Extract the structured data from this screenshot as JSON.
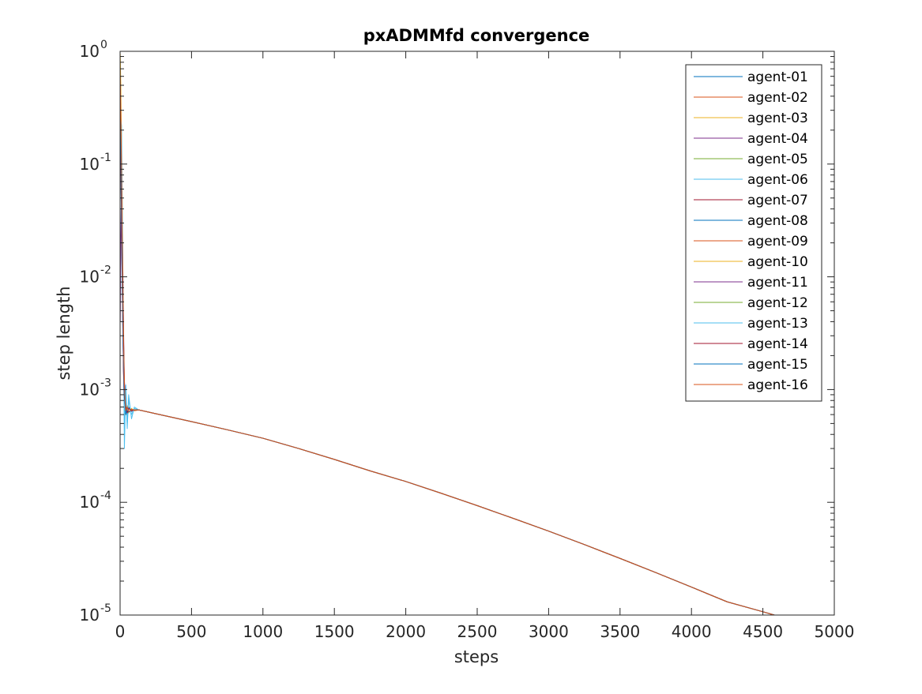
{
  "chart_data": {
    "type": "line",
    "title": "pxADMMfd convergence",
    "xlabel": "steps",
    "ylabel": "step length",
    "xlim": [
      0,
      5000
    ],
    "ylim": [
      1e-05,
      1
    ],
    "yscale": "log",
    "grid": false,
    "legend_position": "top-right",
    "x_ticks": [
      0,
      500,
      1000,
      1500,
      2000,
      2500,
      3000,
      3500,
      4000,
      4500,
      5000
    ],
    "y_ticks": [
      {
        "base": "10",
        "exp": "-5",
        "value": 1e-05
      },
      {
        "base": "10",
        "exp": "-4",
        "value": 0.0001
      },
      {
        "base": "10",
        "exp": "-3",
        "value": 0.001
      },
      {
        "base": "10",
        "exp": "-2",
        "value": 0.01
      },
      {
        "base": "10",
        "exp": "-1",
        "value": 0.1
      },
      {
        "base": "10",
        "exp": "0",
        "value": 1
      }
    ],
    "common_tail": {
      "x": [
        130,
        250,
        500,
        750,
        1000,
        1250,
        1500,
        1750,
        2000,
        2250,
        2500,
        2750,
        3000,
        3250,
        3500,
        3750,
        4000,
        4250,
        4500,
        4580
      ],
      "y": [
        0.00066,
        0.00061,
        0.00052,
        0.00044,
        0.00037,
        0.0003,
        0.00024,
        0.00019,
        0.000153,
        0.00012,
        9.35e-05,
        7.22e-05,
        5.55e-05,
        4.22e-05,
        3.18e-05,
        2.38e-05,
        1.77e-05,
        1.31e-05,
        1.07e-05,
        1e-05
      ]
    },
    "series": [
      {
        "name": "agent-01",
        "color": "#0072BD",
        "x": [
          1,
          5,
          10,
          15,
          20,
          25,
          30,
          40,
          50,
          60,
          80,
          100,
          130
        ],
        "y": [
          0.6,
          0.18,
          0.05,
          0.012,
          0.004,
          0.0015,
          0.0009,
          0.0007,
          0.00062,
          0.0007,
          0.00064,
          0.00066,
          0.00066
        ]
      },
      {
        "name": "agent-02",
        "color": "#D95319",
        "x": [
          1,
          5,
          10,
          15,
          20,
          25,
          30,
          40,
          50,
          60,
          80,
          100,
          130
        ],
        "y": [
          0.55,
          0.3,
          0.08,
          0.02,
          0.006,
          0.002,
          0.001,
          0.00065,
          0.0007,
          0.00063,
          0.00067,
          0.00065,
          0.00066
        ]
      },
      {
        "name": "agent-03",
        "color": "#EDB120",
        "x": [
          1,
          5,
          10,
          15,
          20,
          25,
          30,
          40,
          50,
          60,
          80,
          100,
          130
        ],
        "y": [
          0.95,
          0.5,
          0.12,
          0.03,
          0.008,
          0.0025,
          0.0011,
          0.0006,
          0.00072,
          0.00062,
          0.00068,
          0.00065,
          0.00066
        ]
      },
      {
        "name": "agent-04",
        "color": "#7E2F8E",
        "x": [
          1,
          5,
          10,
          15,
          20,
          25,
          30,
          40,
          50,
          60,
          80,
          100,
          130
        ],
        "y": [
          0.004,
          0.02,
          0.07,
          0.03,
          0.01,
          0.003,
          0.0012,
          0.0008,
          0.0006,
          0.0007,
          0.00064,
          0.00066,
          0.00066
        ]
      },
      {
        "name": "agent-05",
        "color": "#77AC30",
        "x": [
          1,
          5,
          10,
          15,
          20,
          25,
          30,
          40,
          50,
          60,
          80,
          100,
          130
        ],
        "y": [
          0.5,
          0.2,
          0.06,
          0.015,
          0.005,
          0.0018,
          0.0009,
          0.00075,
          0.0006,
          0.00069,
          0.00065,
          0.00066,
          0.00066
        ]
      },
      {
        "name": "agent-06",
        "color": "#4DBEEE",
        "x": [
          1,
          5,
          10,
          15,
          20,
          25,
          30,
          40,
          50,
          60,
          80,
          100,
          130
        ],
        "y": [
          0.3,
          0.25,
          0.22,
          0.05,
          0.01,
          0.002,
          0.0003,
          0.001,
          0.00045,
          0.0009,
          0.00055,
          0.0007,
          0.00066
        ]
      },
      {
        "name": "agent-07",
        "color": "#A2142F",
        "x": [
          1,
          5,
          10,
          15,
          20,
          25,
          30,
          40,
          50,
          60,
          80,
          100,
          130
        ],
        "y": [
          0.7,
          0.15,
          0.04,
          0.01,
          0.0035,
          0.0014,
          0.00085,
          0.00068,
          0.00063,
          0.00068,
          0.00065,
          0.00066,
          0.00066
        ]
      },
      {
        "name": "agent-08",
        "color": "#0072BD",
        "x": [
          1,
          5,
          10,
          15,
          20,
          25,
          30,
          40,
          50,
          60,
          80,
          100,
          130
        ],
        "y": [
          0.45,
          0.12,
          0.035,
          0.009,
          0.003,
          0.0013,
          0.0008,
          0.0007,
          0.00061,
          0.00069,
          0.00065,
          0.00066,
          0.00066
        ]
      },
      {
        "name": "agent-09",
        "color": "#D95319",
        "x": [
          1,
          5,
          10,
          15,
          20,
          25,
          30,
          40,
          50,
          60,
          80,
          100,
          130
        ],
        "y": [
          0.65,
          0.22,
          0.07,
          0.018,
          0.0055,
          0.0019,
          0.001,
          0.00066,
          0.0007,
          0.00063,
          0.00067,
          0.00065,
          0.00066
        ]
      },
      {
        "name": "agent-10",
        "color": "#EDB120",
        "x": [
          1,
          5,
          10,
          15,
          20,
          25,
          30,
          40,
          50,
          60,
          80,
          100,
          130
        ],
        "y": [
          0.8,
          0.35,
          0.09,
          0.022,
          0.007,
          0.0022,
          0.001,
          0.0006,
          0.0007,
          0.00064,
          0.00066,
          0.00066,
          0.00066
        ]
      },
      {
        "name": "agent-11",
        "color": "#7E2F8E",
        "x": [
          1,
          5,
          10,
          15,
          20,
          25,
          30,
          40,
          50,
          60,
          80,
          100,
          130
        ],
        "y": [
          0.2,
          0.1,
          0.03,
          0.008,
          0.0028,
          0.0012,
          0.0008,
          0.0007,
          0.00062,
          0.00068,
          0.00065,
          0.00066,
          0.00066
        ]
      },
      {
        "name": "agent-12",
        "color": "#77AC30",
        "x": [
          1,
          5,
          10,
          15,
          20,
          25,
          30,
          40,
          50,
          60,
          80,
          100,
          130
        ],
        "y": [
          0.4,
          0.14,
          0.045,
          0.011,
          0.0038,
          0.0015,
          0.0009,
          0.00069,
          0.00062,
          0.00068,
          0.00065,
          0.00066,
          0.00066
        ]
      },
      {
        "name": "agent-13",
        "color": "#4DBEEE",
        "x": [
          1,
          5,
          10,
          15,
          20,
          25,
          30,
          40,
          50,
          60,
          80,
          100,
          130
        ],
        "y": [
          0.25,
          0.09,
          0.03,
          0.008,
          0.003,
          0.0014,
          0.0005,
          0.0011,
          0.0005,
          0.0008,
          0.0006,
          0.00068,
          0.00066
        ]
      },
      {
        "name": "agent-14",
        "color": "#A2142F",
        "x": [
          1,
          5,
          10,
          15,
          20,
          25,
          30,
          40,
          50,
          60,
          80,
          100,
          130
        ],
        "y": [
          0.35,
          0.11,
          0.035,
          0.009,
          0.0032,
          0.0013,
          0.00085,
          0.0007,
          0.00062,
          0.00068,
          0.00065,
          0.00066,
          0.00066
        ]
      },
      {
        "name": "agent-15",
        "color": "#0072BD",
        "x": [
          1,
          5,
          10,
          15,
          20,
          25,
          30,
          40,
          50,
          60,
          80,
          100,
          130
        ],
        "y": [
          0.5,
          0.16,
          0.05,
          0.013,
          0.0042,
          0.0016,
          0.0009,
          0.0006,
          0.0007,
          0.00063,
          0.00066,
          0.00066,
          0.00066
        ]
      },
      {
        "name": "agent-16",
        "color": "#D95319",
        "x": [
          1,
          5,
          10,
          15,
          20,
          25,
          30,
          40,
          50,
          60,
          80,
          100,
          130
        ],
        "y": [
          0.6,
          0.28,
          0.1,
          0.025,
          0.008,
          0.0025,
          0.0011,
          0.00065,
          0.0007,
          0.00064,
          0.00066,
          0.00066,
          0.00066
        ]
      }
    ]
  }
}
